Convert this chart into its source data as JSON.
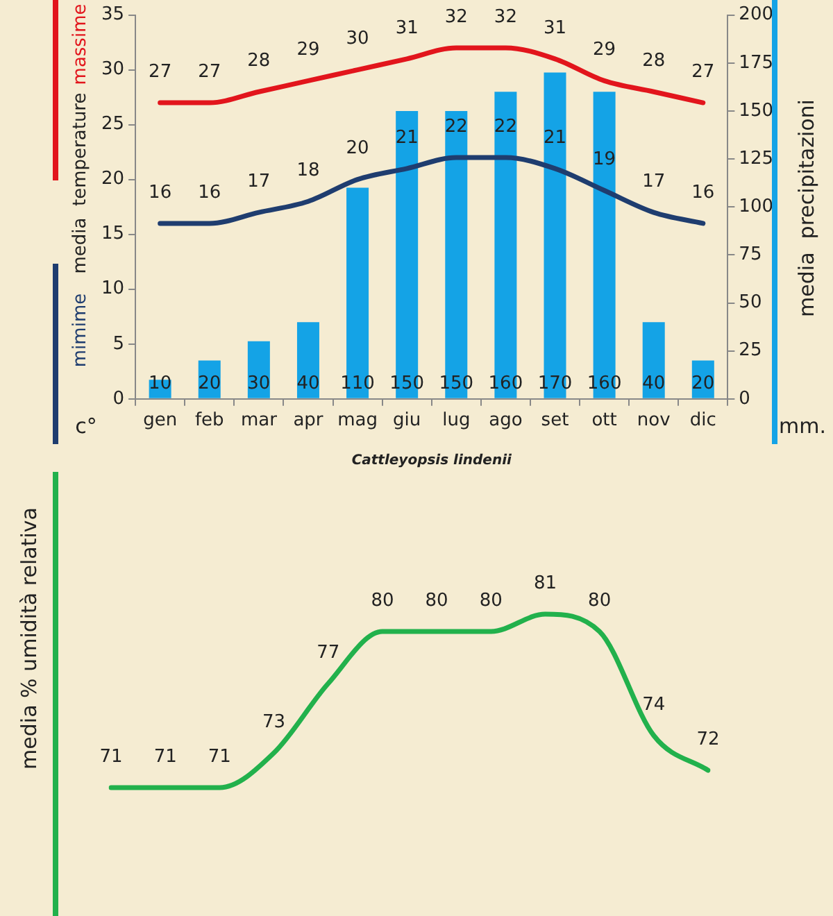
{
  "chart_data": [
    {
      "type": "bar",
      "categories": [
        "gen",
        "feb",
        "mar",
        "apr",
        "mag",
        "giu",
        "lug",
        "ago",
        "set",
        "ott",
        "nov",
        "dic"
      ],
      "ylabel": "media  temperature",
      "y2label": "media  precipitazioni",
      "annotations": [
        "c°",
        "mm.",
        "Cattleyopsis lindenii"
      ],
      "series": [
        {
          "type": "bar",
          "color": "#14a3e6",
          "axis": "y2",
          "values": [
            10,
            20,
            30,
            40,
            110,
            150,
            150,
            160,
            170,
            160,
            40,
            20
          ]
        },
        {
          "type": "line",
          "name": "massime",
          "color": "#e2151c",
          "values": [
            27,
            27,
            28,
            29,
            30,
            31,
            32,
            32,
            31,
            29,
            28,
            27
          ]
        },
        {
          "type": "line",
          "name": "mimime",
          "color": "#1f3d6f",
          "values": [
            16,
            16,
            17,
            18,
            20,
            21,
            22,
            22,
            21,
            19,
            17,
            16
          ]
        }
      ],
      "ylim": [
        0,
        35
      ],
      "yticks": [
        0,
        5,
        10,
        15,
        20,
        25,
        30,
        35
      ],
      "y2lim": [
        0,
        200
      ],
      "y2ticks": [
        0,
        25,
        50,
        75,
        100,
        125,
        150,
        175,
        200
      ],
      "data_labels": true
    },
    {
      "type": "line",
      "categories": [
        null,
        null,
        null,
        null,
        null,
        null,
        null,
        null,
        null,
        null,
        null,
        null
      ],
      "ylabel": "media % umidità relativa",
      "tick_labels": false,
      "series": [
        {
          "color": "#22b14c",
          "values": [
            71,
            71,
            71,
            73,
            77,
            80,
            80,
            80,
            81,
            80,
            74,
            72
          ]
        }
      ],
      "data_labels": true
    }
  ]
}
